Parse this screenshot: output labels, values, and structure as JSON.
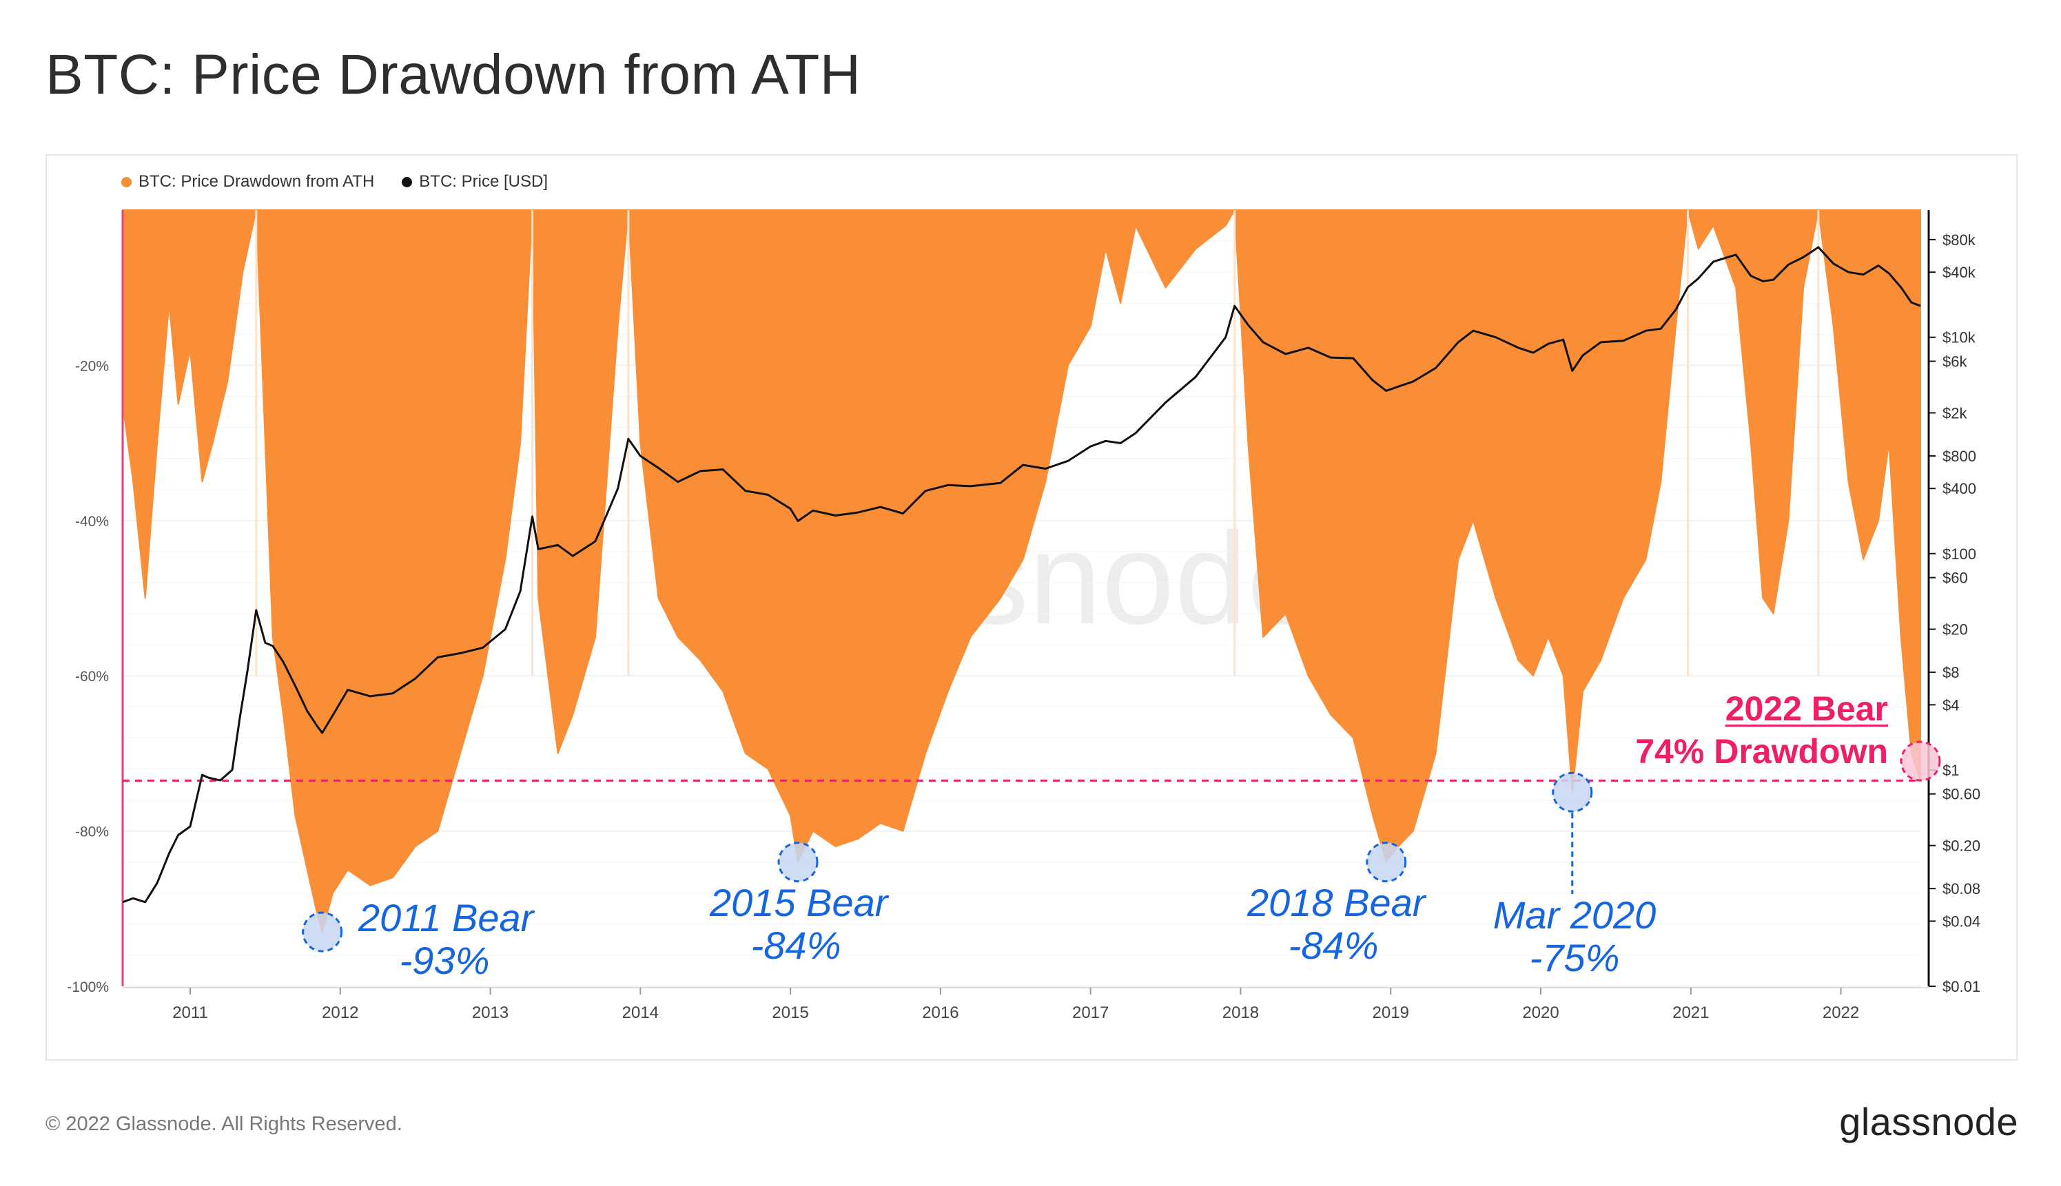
{
  "page": {
    "title": "BTC: Price Drawdown from ATH",
    "footer_copyright": "© 2022 Glassnode. All Rights Reserved.",
    "footer_brand": "glassnode",
    "watermark": "glassnode"
  },
  "colors": {
    "drawdown": "#f98e37",
    "price": "#111111",
    "threshold": "#ee1f63",
    "annotation": "#1565e0",
    "annotation_fill": "#c7d7f2",
    "ath_marker": "#f03c78"
  },
  "legend": [
    {
      "label": "BTC: Price Drawdown from ATH",
      "color": "#f98e37"
    },
    {
      "label": "BTC: Price [USD]",
      "color": "#111111"
    }
  ],
  "annotations": [
    {
      "line1": "2011 Bear",
      "line2": "-93%"
    },
    {
      "line1": "2015 Bear",
      "line2": "-84%"
    },
    {
      "line1": "2018 Bear",
      "line2": "-84%"
    },
    {
      "line1": "Mar 2020",
      "line2": "-75%"
    },
    {
      "line1": "2022 Bear",
      "line2": "74% Drawdown"
    }
  ],
  "chart_data": {
    "type": "area",
    "x_tick_labels": [
      "2011",
      "2012",
      "2013",
      "2014",
      "2015",
      "2016",
      "2017",
      "2018",
      "2019",
      "2020",
      "2021",
      "2022"
    ],
    "y_left_tick_labels": [
      "-20%",
      "-40%",
      "-60%",
      "-80%",
      "-100%"
    ],
    "y_left_range": [
      -100,
      0
    ],
    "y_right_tick_labels": [
      "$80k",
      "$40k",
      "$10k",
      "$6k",
      "$2k",
      "$800",
      "$400",
      "$100",
      "$60",
      "$20",
      "$8",
      "$4",
      "$1",
      "$0.60",
      "$0.20",
      "$0.08",
      "$0.04",
      "$0.01"
    ],
    "y_right_scale": "log",
    "y_right_range": [
      0.01,
      150000
    ],
    "threshold_line": -73.5,
    "series": [
      {
        "name": "BTC: Price Drawdown from ATH",
        "axis": "left",
        "points": [
          [
            2010.55,
            -25
          ],
          [
            2010.62,
            -35
          ],
          [
            2010.7,
            -50
          ],
          [
            2010.78,
            -30
          ],
          [
            2010.86,
            -12
          ],
          [
            2010.92,
            -25
          ],
          [
            2011.0,
            -18
          ],
          [
            2011.08,
            -35
          ],
          [
            2011.15,
            -30
          ],
          [
            2011.25,
            -22
          ],
          [
            2011.35,
            -8
          ],
          [
            2011.44,
            0
          ],
          [
            2011.5,
            -30
          ],
          [
            2011.55,
            -55
          ],
          [
            2011.62,
            -65
          ],
          [
            2011.7,
            -78
          ],
          [
            2011.78,
            -85
          ],
          [
            2011.85,
            -91
          ],
          [
            2011.88,
            -93
          ],
          [
            2011.95,
            -88
          ],
          [
            2012.05,
            -85
          ],
          [
            2012.2,
            -87
          ],
          [
            2012.35,
            -86
          ],
          [
            2012.5,
            -82
          ],
          [
            2012.65,
            -80
          ],
          [
            2012.8,
            -70
          ],
          [
            2012.95,
            -60
          ],
          [
            2013.1,
            -45
          ],
          [
            2013.2,
            -30
          ],
          [
            2013.28,
            0
          ],
          [
            2013.32,
            -50
          ],
          [
            2013.45,
            -70
          ],
          [
            2013.55,
            -65
          ],
          [
            2013.7,
            -55
          ],
          [
            2013.85,
            -15
          ],
          [
            2013.92,
            0
          ],
          [
            2014.0,
            -30
          ],
          [
            2014.12,
            -50
          ],
          [
            2014.25,
            -55
          ],
          [
            2014.4,
            -58
          ],
          [
            2014.55,
            -62
          ],
          [
            2014.7,
            -70
          ],
          [
            2014.85,
            -72
          ],
          [
            2015.0,
            -78
          ],
          [
            2015.05,
            -84
          ],
          [
            2015.15,
            -80
          ],
          [
            2015.3,
            -82
          ],
          [
            2015.45,
            -81
          ],
          [
            2015.6,
            -79
          ],
          [
            2015.75,
            -80
          ],
          [
            2015.9,
            -70
          ],
          [
            2016.05,
            -62
          ],
          [
            2016.2,
            -55
          ],
          [
            2016.4,
            -50
          ],
          [
            2016.55,
            -45
          ],
          [
            2016.7,
            -35
          ],
          [
            2016.85,
            -20
          ],
          [
            2017.0,
            -15
          ],
          [
            2017.1,
            -5
          ],
          [
            2017.2,
            -12
          ],
          [
            2017.3,
            -2
          ],
          [
            2017.5,
            -10
          ],
          [
            2017.7,
            -5
          ],
          [
            2017.9,
            -2
          ],
          [
            2017.96,
            0
          ],
          [
            2018.05,
            -30
          ],
          [
            2018.15,
            -55
          ],
          [
            2018.3,
            -52
          ],
          [
            2018.45,
            -60
          ],
          [
            2018.6,
            -65
          ],
          [
            2018.75,
            -68
          ],
          [
            2018.88,
            -78
          ],
          [
            2018.97,
            -84
          ],
          [
            2019.05,
            -82
          ],
          [
            2019.15,
            -80
          ],
          [
            2019.3,
            -70
          ],
          [
            2019.45,
            -45
          ],
          [
            2019.55,
            -40
          ],
          [
            2019.7,
            -50
          ],
          [
            2019.85,
            -58
          ],
          [
            2019.95,
            -60
          ],
          [
            2020.05,
            -55
          ],
          [
            2020.15,
            -60
          ],
          [
            2020.21,
            -75
          ],
          [
            2020.28,
            -62
          ],
          [
            2020.4,
            -58
          ],
          [
            2020.55,
            -50
          ],
          [
            2020.7,
            -45
          ],
          [
            2020.8,
            -35
          ],
          [
            2020.9,
            -15
          ],
          [
            2020.98,
            0
          ],
          [
            2021.05,
            -5
          ],
          [
            2021.15,
            -2
          ],
          [
            2021.3,
            -10
          ],
          [
            2021.4,
            -30
          ],
          [
            2021.48,
            -50
          ],
          [
            2021.55,
            -52
          ],
          [
            2021.65,
            -40
          ],
          [
            2021.75,
            -10
          ],
          [
            2021.85,
            0
          ],
          [
            2021.95,
            -15
          ],
          [
            2022.05,
            -35
          ],
          [
            2022.15,
            -45
          ],
          [
            2022.25,
            -40
          ],
          [
            2022.32,
            -30
          ],
          [
            2022.4,
            -55
          ],
          [
            2022.47,
            -70
          ],
          [
            2022.53,
            -73.5
          ]
        ]
      },
      {
        "name": "BTC: Price [USD]",
        "axis": "right",
        "points": [
          [
            2010.55,
            0.06
          ],
          [
            2010.62,
            0.065
          ],
          [
            2010.7,
            0.06
          ],
          [
            2010.78,
            0.09
          ],
          [
            2010.86,
            0.17
          ],
          [
            2010.92,
            0.25
          ],
          [
            2011.0,
            0.3
          ],
          [
            2011.08,
            0.9
          ],
          [
            2011.12,
            0.85
          ],
          [
            2011.2,
            0.8
          ],
          [
            2011.28,
            1.0
          ],
          [
            2011.33,
            3.0
          ],
          [
            2011.38,
            8
          ],
          [
            2011.44,
            30
          ],
          [
            2011.5,
            15
          ],
          [
            2011.55,
            14
          ],
          [
            2011.62,
            10
          ],
          [
            2011.7,
            6
          ],
          [
            2011.78,
            3.5
          ],
          [
            2011.85,
            2.5
          ],
          [
            2011.88,
            2.2
          ],
          [
            2011.95,
            3.2
          ],
          [
            2012.05,
            5.5
          ],
          [
            2012.2,
            4.8
          ],
          [
            2012.35,
            5.1
          ],
          [
            2012.5,
            7
          ],
          [
            2012.65,
            11
          ],
          [
            2012.8,
            12
          ],
          [
            2012.95,
            13.5
          ],
          [
            2013.1,
            20
          ],
          [
            2013.2,
            45
          ],
          [
            2013.28,
            220
          ],
          [
            2013.32,
            110
          ],
          [
            2013.45,
            120
          ],
          [
            2013.55,
            95
          ],
          [
            2013.7,
            130
          ],
          [
            2013.85,
            400
          ],
          [
            2013.92,
            1150
          ],
          [
            2014.0,
            800
          ],
          [
            2014.12,
            620
          ],
          [
            2014.25,
            460
          ],
          [
            2014.4,
            580
          ],
          [
            2014.55,
            600
          ],
          [
            2014.7,
            380
          ],
          [
            2014.85,
            350
          ],
          [
            2015.0,
            260
          ],
          [
            2015.05,
            200
          ],
          [
            2015.15,
            250
          ],
          [
            2015.3,
            225
          ],
          [
            2015.45,
            240
          ],
          [
            2015.6,
            270
          ],
          [
            2015.75,
            235
          ],
          [
            2015.9,
            380
          ],
          [
            2016.05,
            430
          ],
          [
            2016.2,
            420
          ],
          [
            2016.4,
            450
          ],
          [
            2016.55,
            660
          ],
          [
            2016.7,
            610
          ],
          [
            2016.85,
            720
          ],
          [
            2017.0,
            980
          ],
          [
            2017.1,
            1100
          ],
          [
            2017.2,
            1050
          ],
          [
            2017.3,
            1300
          ],
          [
            2017.5,
            2500
          ],
          [
            2017.7,
            4300
          ],
          [
            2017.9,
            10000
          ],
          [
            2017.96,
            19500
          ],
          [
            2018.05,
            13000
          ],
          [
            2018.15,
            9000
          ],
          [
            2018.3,
            7000
          ],
          [
            2018.45,
            8000
          ],
          [
            2018.6,
            6500
          ],
          [
            2018.75,
            6400
          ],
          [
            2018.88,
            4000
          ],
          [
            2018.97,
            3200
          ],
          [
            2019.05,
            3500
          ],
          [
            2019.15,
            3900
          ],
          [
            2019.3,
            5200
          ],
          [
            2019.45,
            9000
          ],
          [
            2019.55,
            11500
          ],
          [
            2019.7,
            10000
          ],
          [
            2019.85,
            8000
          ],
          [
            2019.95,
            7200
          ],
          [
            2020.05,
            8700
          ],
          [
            2020.15,
            9500
          ],
          [
            2020.21,
            4900
          ],
          [
            2020.28,
            6800
          ],
          [
            2020.4,
            9000
          ],
          [
            2020.55,
            9300
          ],
          [
            2020.7,
            11500
          ],
          [
            2020.8,
            12000
          ],
          [
            2020.9,
            18000
          ],
          [
            2020.98,
            29000
          ],
          [
            2021.05,
            35000
          ],
          [
            2021.15,
            50000
          ],
          [
            2021.3,
            58000
          ],
          [
            2021.4,
            37000
          ],
          [
            2021.48,
            33000
          ],
          [
            2021.55,
            34000
          ],
          [
            2021.65,
            47000
          ],
          [
            2021.75,
            55000
          ],
          [
            2021.85,
            68000
          ],
          [
            2021.95,
            48000
          ],
          [
            2022.05,
            40000
          ],
          [
            2022.15,
            38000
          ],
          [
            2022.25,
            46000
          ],
          [
            2022.32,
            39000
          ],
          [
            2022.4,
            29000
          ],
          [
            2022.47,
            21000
          ],
          [
            2022.53,
            19500
          ]
        ]
      }
    ]
  }
}
